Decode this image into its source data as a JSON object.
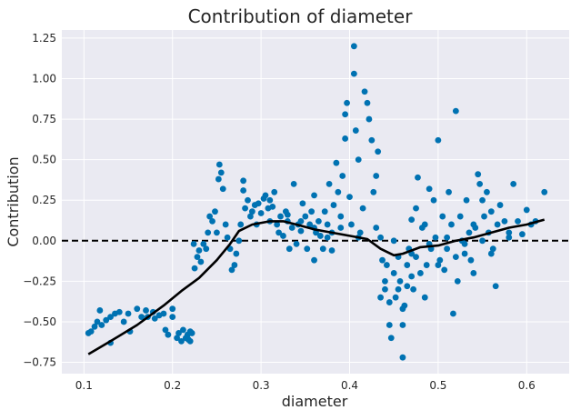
{
  "chart_data": {
    "type": "scatter",
    "title": "Contribution of diameter",
    "xlabel": "diameter",
    "ylabel": "Contribution",
    "xlim": [
      0.075,
      0.648
    ],
    "ylim": [
      -0.82,
      1.3
    ],
    "x_ticks": [
      0.1,
      0.2,
      0.3,
      0.4,
      0.5,
      0.6
    ],
    "x_tick_labels": [
      "0.1",
      "0.2",
      "0.3",
      "0.4",
      "0.5",
      "0.6"
    ],
    "y_ticks": [
      -0.75,
      -0.5,
      -0.25,
      0.0,
      0.25,
      0.5,
      0.75,
      1.0,
      1.25
    ],
    "y_tick_labels": [
      "−0.75",
      "−0.50",
      "−0.25",
      "0.00",
      "0.25",
      "0.50",
      "0.75",
      "1.00",
      "1.25"
    ],
    "grid": true,
    "background_color": "#eaeaf2",
    "grid_color": "#ffffff",
    "point_color": "#0072b2",
    "line_color": "#000000",
    "reference_line": {
      "y": 0,
      "style": "dashed",
      "color": "#000000"
    },
    "scatter_points": [
      [
        0.105,
        -0.57
      ],
      [
        0.108,
        -0.56
      ],
      [
        0.112,
        -0.53
      ],
      [
        0.115,
        -0.5
      ],
      [
        0.118,
        -0.43
      ],
      [
        0.12,
        -0.52
      ],
      [
        0.125,
        -0.49
      ],
      [
        0.13,
        -0.63
      ],
      [
        0.13,
        -0.47
      ],
      [
        0.135,
        -0.45
      ],
      [
        0.14,
        -0.44
      ],
      [
        0.145,
        -0.5
      ],
      [
        0.15,
        -0.45
      ],
      [
        0.152,
        -0.56
      ],
      [
        0.16,
        -0.42
      ],
      [
        0.165,
        -0.47
      ],
      [
        0.17,
        -0.43
      ],
      [
        0.172,
        -0.47
      ],
      [
        0.178,
        -0.44
      ],
      [
        0.18,
        -0.48
      ],
      [
        0.185,
        -0.46
      ],
      [
        0.19,
        -0.45
      ],
      [
        0.192,
        -0.55
      ],
      [
        0.195,
        -0.58
      ],
      [
        0.2,
        -0.42
      ],
      [
        0.2,
        -0.47
      ],
      [
        0.205,
        -0.6
      ],
      [
        0.207,
        -0.57
      ],
      [
        0.21,
        -0.62
      ],
      [
        0.212,
        -0.55
      ],
      [
        0.215,
        -0.6
      ],
      [
        0.217,
        -0.58
      ],
      [
        0.22,
        -0.62
      ],
      [
        0.222,
        -0.57
      ],
      [
        0.22,
        -0.56
      ],
      [
        0.218,
        -0.61
      ],
      [
        0.224,
        -0.02
      ],
      [
        0.225,
        -0.17
      ],
      [
        0.228,
        -0.1
      ],
      [
        0.23,
        -0.06
      ],
      [
        0.232,
        -0.13
      ],
      [
        0.235,
        -0.02
      ],
      [
        0.238,
        -0.05
      ],
      [
        0.24,
        0.05
      ],
      [
        0.242,
        0.15
      ],
      [
        0.245,
        0.12
      ],
      [
        0.248,
        0.18
      ],
      [
        0.25,
        0.05
      ],
      [
        0.252,
        0.38
      ],
      [
        0.253,
        0.47
      ],
      [
        0.255,
        0.42
      ],
      [
        0.257,
        0.32
      ],
      [
        0.26,
        0.1
      ],
      [
        0.262,
        0.02
      ],
      [
        0.265,
        -0.05
      ],
      [
        0.267,
        -0.18
      ],
      [
        0.27,
        -0.15
      ],
      [
        0.272,
        -0.08
      ],
      [
        0.275,
        0.0
      ],
      [
        0.277,
        0.1
      ],
      [
        0.28,
        0.37
      ],
      [
        0.28,
        0.31
      ],
      [
        0.282,
        0.2
      ],
      [
        0.285,
        0.25
      ],
      [
        0.288,
        0.15
      ],
      [
        0.29,
        0.18
      ],
      [
        0.293,
        0.22
      ],
      [
        0.295,
        0.1
      ],
      [
        0.297,
        0.23
      ],
      [
        0.3,
        0.17
      ],
      [
        0.303,
        0.26
      ],
      [
        0.305,
        0.28
      ],
      [
        0.308,
        0.2
      ],
      [
        0.31,
        0.25
      ],
      [
        0.313,
        0.21
      ],
      [
        0.315,
        0.3
      ],
      [
        0.318,
        0.1
      ],
      [
        0.32,
        0.05
      ],
      [
        0.322,
        0.15
      ],
      [
        0.325,
        0.03
      ],
      [
        0.328,
        0.18
      ],
      [
        0.33,
        0.12
      ],
      [
        0.332,
        -0.05
      ],
      [
        0.335,
        0.08
      ],
      [
        0.337,
        0.35
      ],
      [
        0.34,
        -0.02
      ],
      [
        0.342,
        0.1
      ],
      [
        0.345,
        0.06
      ],
      [
        0.347,
        0.23
      ],
      [
        0.35,
        0.15
      ],
      [
        0.352,
        -0.05
      ],
      [
        0.355,
        0.1
      ],
      [
        0.357,
        0.18
      ],
      [
        0.36,
        0.28
      ],
      [
        0.362,
        0.05
      ],
      [
        0.365,
        0.12
      ],
      [
        0.367,
        0.03
      ],
      [
        0.37,
        -0.05
      ],
      [
        0.372,
        0.18
      ],
      [
        0.375,
        0.1
      ],
      [
        0.377,
        0.35
      ],
      [
        0.38,
        0.05
      ],
      [
        0.382,
        0.22
      ],
      [
        0.385,
        0.48
      ],
      [
        0.387,
        0.3
      ],
      [
        0.39,
        0.15
      ],
      [
        0.392,
        0.4
      ],
      [
        0.395,
        0.63
      ],
      [
        0.395,
        0.78
      ],
      [
        0.397,
        0.85
      ],
      [
        0.4,
        0.27
      ],
      [
        0.402,
        0.1
      ],
      [
        0.405,
        1.2
      ],
      [
        0.405,
        1.03
      ],
      [
        0.407,
        0.68
      ],
      [
        0.41,
        0.5
      ],
      [
        0.412,
        0.05
      ],
      [
        0.415,
        0.2
      ],
      [
        0.417,
        0.92
      ],
      [
        0.42,
        0.85
      ],
      [
        0.422,
        0.75
      ],
      [
        0.425,
        0.62
      ],
      [
        0.427,
        0.3
      ],
      [
        0.43,
        0.4
      ],
      [
        0.432,
        0.55
      ],
      [
        0.435,
        0.02
      ],
      [
        0.437,
        -0.12
      ],
      [
        0.44,
        -0.3
      ],
      [
        0.442,
        -0.15
      ],
      [
        0.445,
        -0.52
      ],
      [
        0.447,
        -0.6
      ],
      [
        0.45,
        -0.2
      ],
      [
        0.452,
        -0.35
      ],
      [
        0.455,
        -0.1
      ],
      [
        0.457,
        -0.25
      ],
      [
        0.46,
        -0.72
      ],
      [
        0.46,
        -0.52
      ],
      [
        0.462,
        -0.4
      ],
      [
        0.465,
        -0.15
      ],
      [
        0.467,
        -0.05
      ],
      [
        0.47,
        0.13
      ],
      [
        0.472,
        -0.3
      ],
      [
        0.475,
        0.2
      ],
      [
        0.477,
        0.39
      ],
      [
        0.48,
        -0.2
      ],
      [
        0.482,
        0.08
      ],
      [
        0.485,
        0.1
      ],
      [
        0.487,
        -0.15
      ],
      [
        0.49,
        0.32
      ],
      [
        0.492,
        -0.05
      ],
      [
        0.495,
        0.25
      ],
      [
        0.497,
        0.02
      ],
      [
        0.5,
        0.62
      ],
      [
        0.502,
        -0.12
      ],
      [
        0.505,
        0.15
      ],
      [
        0.507,
        -0.18
      ],
      [
        0.51,
        -0.05
      ],
      [
        0.512,
        0.3
      ],
      [
        0.515,
        0.1
      ],
      [
        0.517,
        -0.45
      ],
      [
        0.52,
        0.8
      ],
      [
        0.522,
        -0.25
      ],
      [
        0.525,
        0.15
      ],
      [
        0.527,
        0.0
      ],
      [
        0.53,
        -0.02
      ],
      [
        0.532,
        0.25
      ],
      [
        0.535,
        0.05
      ],
      [
        0.537,
        -0.12
      ],
      [
        0.54,
        0.1
      ],
      [
        0.542,
        0.08
      ],
      [
        0.545,
        0.41
      ],
      [
        0.547,
        0.35
      ],
      [
        0.55,
        0.25
      ],
      [
        0.552,
        0.15
      ],
      [
        0.555,
        0.3
      ],
      [
        0.557,
        0.05
      ],
      [
        0.56,
        0.18
      ],
      [
        0.562,
        -0.05
      ],
      [
        0.565,
        -0.28
      ],
      [
        0.567,
        0.1
      ],
      [
        0.57,
        0.22
      ],
      [
        0.575,
        0.12
      ],
      [
        0.58,
        0.05
      ],
      [
        0.585,
        0.35
      ],
      [
        0.59,
        0.12
      ],
      [
        0.595,
        0.04
      ],
      [
        0.6,
        0.19
      ],
      [
        0.605,
        0.1
      ],
      [
        0.61,
        0.12
      ],
      [
        0.62,
        0.3
      ],
      [
        0.31,
        0.12
      ],
      [
        0.33,
        0.16
      ],
      [
        0.345,
        0.12
      ],
      [
        0.36,
        0.08
      ],
      [
        0.375,
        0.02
      ],
      [
        0.39,
        0.08
      ],
      [
        0.41,
        0.02
      ],
      [
        0.43,
        0.08
      ],
      [
        0.45,
        0.0
      ],
      [
        0.47,
        -0.08
      ],
      [
        0.49,
        -0.02
      ],
      [
        0.51,
        0.02
      ],
      [
        0.53,
        -0.08
      ],
      [
        0.55,
        0.0
      ],
      [
        0.36,
        -0.12
      ],
      [
        0.38,
        -0.06
      ],
      [
        0.44,
        -0.25
      ],
      [
        0.455,
        -0.3
      ],
      [
        0.465,
        -0.28
      ],
      [
        0.475,
        -0.1
      ],
      [
        0.435,
        -0.35
      ],
      [
        0.445,
        -0.38
      ],
      [
        0.46,
        -0.42
      ],
      [
        0.47,
        -0.22
      ],
      [
        0.485,
        -0.35
      ],
      [
        0.5,
        -0.15
      ],
      [
        0.52,
        -0.1
      ],
      [
        0.54,
        -0.2
      ],
      [
        0.56,
        -0.08
      ],
      [
        0.58,
        0.02
      ]
    ],
    "trend_line": [
      [
        0.105,
        -0.7
      ],
      [
        0.13,
        -0.62
      ],
      [
        0.16,
        -0.52
      ],
      [
        0.19,
        -0.4
      ],
      [
        0.21,
        -0.31
      ],
      [
        0.23,
        -0.23
      ],
      [
        0.25,
        -0.12
      ],
      [
        0.265,
        -0.02
      ],
      [
        0.275,
        0.06
      ],
      [
        0.29,
        0.1
      ],
      [
        0.31,
        0.12
      ],
      [
        0.325,
        0.12
      ],
      [
        0.34,
        0.1
      ],
      [
        0.36,
        0.07
      ],
      [
        0.38,
        0.05
      ],
      [
        0.4,
        0.03
      ],
      [
        0.42,
        0.01
      ],
      [
        0.435,
        -0.05
      ],
      [
        0.45,
        -0.09
      ],
      [
        0.46,
        -0.08
      ],
      [
        0.48,
        -0.04
      ],
      [
        0.5,
        -0.03
      ],
      [
        0.52,
        0.0
      ],
      [
        0.54,
        0.02
      ],
      [
        0.56,
        0.05
      ],
      [
        0.58,
        0.08
      ],
      [
        0.6,
        0.1
      ],
      [
        0.62,
        0.13
      ]
    ]
  }
}
